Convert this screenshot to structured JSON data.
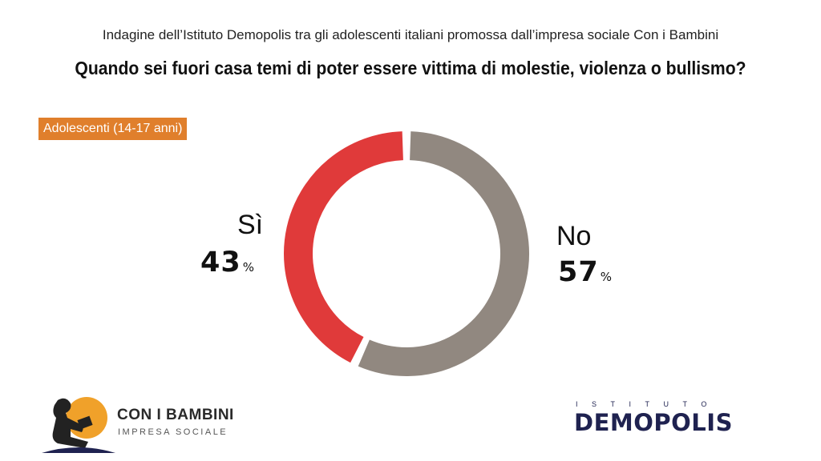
{
  "header": {
    "subtitle": "Indagine dell’Istituto Demopolis tra gli adolescenti italiani promossa dall’impresa sociale Con i Bambini",
    "title": "Quando sei fuori casa temi di poter essere vittima di molestie, violenza o bullismo?"
  },
  "badge": "Adolescenti (14-17 anni)",
  "chart_data": {
    "type": "pie",
    "title": "Quando sei fuori casa temi di poter essere vittima di molestie, violenza o bullismo?",
    "categories": [
      "Sì",
      "No"
    ],
    "values": [
      43,
      57
    ],
    "unit": "%",
    "colors": [
      "#e03a3a",
      "#918880"
    ],
    "donut": true
  },
  "labels": {
    "si_name": "Sì",
    "si_value": "43",
    "no_name": "No",
    "no_value": "57",
    "unit": "%"
  },
  "logos": {
    "left_brand": "CON I BAMBINI",
    "left_sub": "IMPRESA SOCIALE",
    "right_kicker": "ISTITUTO",
    "right_word": "DEMOPOLIS"
  }
}
